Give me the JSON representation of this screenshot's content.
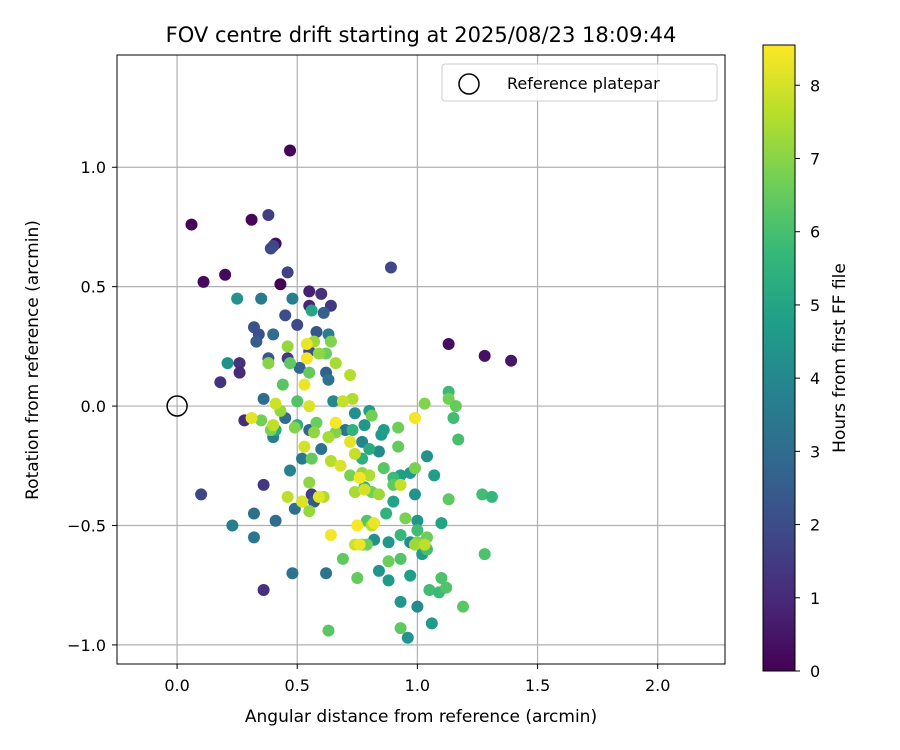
{
  "chart_data": {
    "type": "scatter",
    "title": "FOV centre drift starting at 2025/08/23 18:09:44",
    "xlabel": "Angular distance from reference (arcmin)",
    "ylabel": "Rotation from reference (arcmin)",
    "xlim": [
      -0.25,
      2.28
    ],
    "ylim": [
      -1.08,
      1.47
    ],
    "x_ticks": [
      0.0,
      0.5,
      1.0,
      1.5,
      2.0
    ],
    "x_tick_labels": [
      "0.0",
      "0.5",
      "1.0",
      "1.5",
      "2.0"
    ],
    "y_ticks": [
      -1.0,
      -0.5,
      0.0,
      0.5,
      1.0
    ],
    "y_tick_labels": [
      "−1.0",
      "−0.5",
      "0.0",
      "0.5",
      "1.0"
    ],
    "grid": true,
    "legend": {
      "placement": "top-right",
      "entries": [
        "Reference platepar"
      ]
    },
    "reference_point": {
      "label": "Reference platepar",
      "x": 0.0,
      "y": 0.0
    },
    "colorbar": {
      "label": "Hours from first FF file",
      "min": 0,
      "max": 8.55,
      "ticks": [
        0,
        1,
        2,
        3,
        4,
        5,
        6,
        7,
        8
      ],
      "tick_labels": [
        "0",
        "1",
        "2",
        "3",
        "4",
        "5",
        "6",
        "7",
        "8"
      ],
      "colormap": "viridis"
    },
    "colormap_stops": [
      "#440154",
      "#482878",
      "#3e4989",
      "#31688e",
      "#26828e",
      "#1f9e89",
      "#35b779",
      "#6ece58",
      "#b5de2b",
      "#fde725"
    ],
    "points": [
      {
        "x": 0.47,
        "y": 1.07,
        "h": 0.1
      },
      {
        "x": 0.06,
        "y": 0.76,
        "h": 0.1
      },
      {
        "x": 0.31,
        "y": 0.78,
        "h": 0.2
      },
      {
        "x": 0.41,
        "y": 0.68,
        "h": 0.3
      },
      {
        "x": 0.11,
        "y": 0.52,
        "h": 0.2
      },
      {
        "x": 0.2,
        "y": 0.55,
        "h": 0.2
      },
      {
        "x": 0.43,
        "y": 0.51,
        "h": 0.1
      },
      {
        "x": 1.13,
        "y": 0.26,
        "h": 0.3
      },
      {
        "x": 1.28,
        "y": 0.21,
        "h": 0.4
      },
      {
        "x": 1.39,
        "y": 0.19,
        "h": 0.5
      },
      {
        "x": 0.55,
        "y": 0.48,
        "h": 0.8
      },
      {
        "x": 0.6,
        "y": 0.47,
        "h": 1.2
      },
      {
        "x": 0.55,
        "y": 0.42,
        "h": 0.9
      },
      {
        "x": 0.64,
        "y": 0.42,
        "h": 1.4
      },
      {
        "x": 0.38,
        "y": 0.8,
        "h": 1.6
      },
      {
        "x": 0.4,
        "y": 0.67,
        "h": 1.8
      },
      {
        "x": 0.39,
        "y": 0.66,
        "h": 1.9
      },
      {
        "x": 0.46,
        "y": 0.56,
        "h": 1.7
      },
      {
        "x": 0.89,
        "y": 0.58,
        "h": 1.9
      },
      {
        "x": 0.18,
        "y": 0.1,
        "h": 1.3
      },
      {
        "x": 0.26,
        "y": 0.18,
        "h": 1.2
      },
      {
        "x": 0.26,
        "y": 0.14,
        "h": 1.0
      },
      {
        "x": 0.28,
        "y": -0.06,
        "h": 1.1
      },
      {
        "x": 0.1,
        "y": -0.37,
        "h": 1.8
      },
      {
        "x": 0.36,
        "y": -0.33,
        "h": 1.4
      },
      {
        "x": 0.36,
        "y": -0.77,
        "h": 1.2
      },
      {
        "x": 0.32,
        "y": 0.33,
        "h": 2.2
      },
      {
        "x": 0.34,
        "y": 0.3,
        "h": 2.1
      },
      {
        "x": 0.45,
        "y": 0.38,
        "h": 2.0
      },
      {
        "x": 0.5,
        "y": 0.34,
        "h": 1.9
      },
      {
        "x": 0.58,
        "y": 0.31,
        "h": 2.3
      },
      {
        "x": 0.61,
        "y": 0.39,
        "h": 2.6
      },
      {
        "x": 0.33,
        "y": 0.27,
        "h": 2.5
      },
      {
        "x": 0.46,
        "y": 0.2,
        "h": 1.5
      },
      {
        "x": 0.55,
        "y": 0.23,
        "h": 2.0
      },
      {
        "x": 0.38,
        "y": 0.2,
        "h": 2.4
      },
      {
        "x": 0.51,
        "y": 0.16,
        "h": 2.8
      },
      {
        "x": 0.62,
        "y": 0.14,
        "h": 2.6
      },
      {
        "x": 0.36,
        "y": 0.03,
        "h": 3.0
      },
      {
        "x": 0.45,
        "y": -0.05,
        "h": 3.0
      },
      {
        "x": 0.55,
        "y": -0.1,
        "h": 2.8
      },
      {
        "x": 0.6,
        "y": -0.18,
        "h": 3.2
      },
      {
        "x": 0.56,
        "y": -0.37,
        "h": 1.6
      },
      {
        "x": 0.57,
        "y": -0.4,
        "h": 2.4
      },
      {
        "x": 0.49,
        "y": -0.43,
        "h": 3.1
      },
      {
        "x": 0.41,
        "y": -0.48,
        "h": 3.0
      },
      {
        "x": 0.32,
        "y": -0.45,
        "h": 3.1
      },
      {
        "x": 0.48,
        "y": -0.7,
        "h": 3.2
      },
      {
        "x": 0.62,
        "y": -0.7,
        "h": 3.3
      },
      {
        "x": 0.32,
        "y": -0.55,
        "h": 3.4
      },
      {
        "x": 0.23,
        "y": -0.5,
        "h": 3.7
      },
      {
        "x": 0.35,
        "y": 0.45,
        "h": 3.5
      },
      {
        "x": 0.48,
        "y": 0.45,
        "h": 3.6
      },
      {
        "x": 0.4,
        "y": 0.3,
        "h": 3.0
      },
      {
        "x": 0.63,
        "y": 0.3,
        "h": 3.6
      },
      {
        "x": 0.63,
        "y": 0.11,
        "h": 3.2
      },
      {
        "x": 0.4,
        "y": -0.13,
        "h": 3.7
      },
      {
        "x": 0.52,
        "y": -0.22,
        "h": 3.4
      },
      {
        "x": 0.47,
        "y": -0.27,
        "h": 3.8
      },
      {
        "x": 0.7,
        "y": -0.1,
        "h": 3.3
      },
      {
        "x": 0.77,
        "y": -0.15,
        "h": 3.9
      },
      {
        "x": 0.65,
        "y": 0.02,
        "h": 4.0
      },
      {
        "x": 0.74,
        "y": -0.03,
        "h": 4.2
      },
      {
        "x": 0.78,
        "y": -0.08,
        "h": 4.5
      },
      {
        "x": 0.85,
        "y": -0.12,
        "h": 4.6
      },
      {
        "x": 0.84,
        "y": -0.19,
        "h": 4.1
      },
      {
        "x": 0.86,
        "y": -0.1,
        "h": 4.8
      },
      {
        "x": 0.8,
        "y": -0.02,
        "h": 4.7
      },
      {
        "x": 0.93,
        "y": -0.29,
        "h": 4.8
      },
      {
        "x": 0.97,
        "y": -0.28,
        "h": 4.6
      },
      {
        "x": 0.99,
        "y": -0.37,
        "h": 4.4
      },
      {
        "x": 0.9,
        "y": -0.4,
        "h": 4.9
      },
      {
        "x": 1.0,
        "y": -0.48,
        "h": 4.5
      },
      {
        "x": 1.04,
        "y": -0.21,
        "h": 4.3
      },
      {
        "x": 1.07,
        "y": -0.29,
        "h": 4.7
      },
      {
        "x": 0.88,
        "y": -0.57,
        "h": 4.5
      },
      {
        "x": 0.82,
        "y": -0.56,
        "h": 4.3
      },
      {
        "x": 0.84,
        "y": -0.69,
        "h": 4.4
      },
      {
        "x": 0.88,
        "y": -0.73,
        "h": 4.6
      },
      {
        "x": 0.93,
        "y": -0.82,
        "h": 4.5
      },
      {
        "x": 0.97,
        "y": -0.57,
        "h": 4.2
      },
      {
        "x": 0.97,
        "y": -0.71,
        "h": 4.8
      },
      {
        "x": 1.02,
        "y": -0.62,
        "h": 4.7
      },
      {
        "x": 1.0,
        "y": -0.84,
        "h": 4.1
      },
      {
        "x": 0.96,
        "y": -0.97,
        "h": 4.4
      },
      {
        "x": 1.06,
        "y": -0.91,
        "h": 4.6
      },
      {
        "x": 1.1,
        "y": -0.49,
        "h": 4.9
      },
      {
        "x": 0.25,
        "y": 0.45,
        "h": 4.4
      },
      {
        "x": 0.21,
        "y": 0.18,
        "h": 4.3
      },
      {
        "x": 0.56,
        "y": 0.4,
        "h": 5.0
      },
      {
        "x": 0.41,
        "y": -0.1,
        "h": 5.2
      },
      {
        "x": 0.5,
        "y": -0.08,
        "h": 5.3
      },
      {
        "x": 0.73,
        "y": -0.1,
        "h": 5.5
      },
      {
        "x": 0.8,
        "y": -0.18,
        "h": 5.2
      },
      {
        "x": 0.77,
        "y": -0.22,
        "h": 5.4
      },
      {
        "x": 0.78,
        "y": -0.34,
        "h": 5.6
      },
      {
        "x": 0.9,
        "y": -0.3,
        "h": 5.8
      },
      {
        "x": 0.87,
        "y": -0.45,
        "h": 5.5
      },
      {
        "x": 0.93,
        "y": -0.54,
        "h": 5.7
      },
      {
        "x": 1.0,
        "y": -0.52,
        "h": 5.9
      },
      {
        "x": 1.02,
        "y": -0.58,
        "h": 5.6
      },
      {
        "x": 1.04,
        "y": -0.6,
        "h": 6.0
      },
      {
        "x": 1.05,
        "y": -0.77,
        "h": 5.9
      },
      {
        "x": 1.09,
        "y": -0.78,
        "h": 5.8
      },
      {
        "x": 1.12,
        "y": -0.76,
        "h": 6.2
      },
      {
        "x": 1.1,
        "y": -0.72,
        "h": 6.1
      },
      {
        "x": 1.19,
        "y": -0.84,
        "h": 6.3
      },
      {
        "x": 1.13,
        "y": 0.06,
        "h": 5.8
      },
      {
        "x": 1.15,
        "y": -0.05,
        "h": 5.9
      },
      {
        "x": 1.17,
        "y": -0.14,
        "h": 6.0
      },
      {
        "x": 1.27,
        "y": -0.37,
        "h": 5.9
      },
      {
        "x": 1.31,
        "y": -0.38,
        "h": 5.7
      },
      {
        "x": 1.28,
        "y": -0.62,
        "h": 6.1
      },
      {
        "x": 1.13,
        "y": -0.39,
        "h": 6.4
      },
      {
        "x": 0.63,
        "y": -0.94,
        "h": 6.3
      },
      {
        "x": 0.69,
        "y": -0.64,
        "h": 6.4
      },
      {
        "x": 0.75,
        "y": -0.72,
        "h": 6.5
      },
      {
        "x": 0.88,
        "y": -0.65,
        "h": 6.6
      },
      {
        "x": 0.93,
        "y": -0.64,
        "h": 6.2
      },
      {
        "x": 0.93,
        "y": -0.93,
        "h": 6.4
      },
      {
        "x": 1.04,
        "y": -0.55,
        "h": 6.6
      },
      {
        "x": 0.79,
        "y": -0.58,
        "h": 6.7
      },
      {
        "x": 0.77,
        "y": -0.58,
        "h": 6.6
      },
      {
        "x": 0.9,
        "y": -0.33,
        "h": 6.4
      },
      {
        "x": 0.95,
        "y": -0.47,
        "h": 6.8
      },
      {
        "x": 1.0,
        "y": -0.57,
        "h": 6.9
      },
      {
        "x": 0.92,
        "y": -0.17,
        "h": 6.5
      },
      {
        "x": 0.86,
        "y": -0.26,
        "h": 6.3
      },
      {
        "x": 0.81,
        "y": -0.36,
        "h": 6.7
      },
      {
        "x": 0.79,
        "y": -0.48,
        "h": 6.2
      },
      {
        "x": 0.72,
        "y": -0.29,
        "h": 6.8
      },
      {
        "x": 0.66,
        "y": -0.11,
        "h": 6.9
      },
      {
        "x": 0.58,
        "y": -0.07,
        "h": 6.6
      },
      {
        "x": 0.47,
        "y": 0.18,
        "h": 6.4
      },
      {
        "x": 0.55,
        "y": 0.14,
        "h": 6.5
      },
      {
        "x": 0.64,
        "y": 0.27,
        "h": 6.9
      },
      {
        "x": 0.62,
        "y": 0.22,
        "h": 6.6
      },
      {
        "x": 0.44,
        "y": 0.09,
        "h": 6.3
      },
      {
        "x": 0.5,
        "y": 0.02,
        "h": 6.2
      },
      {
        "x": 0.35,
        "y": -0.06,
        "h": 6.7
      },
      {
        "x": 0.39,
        "y": -0.1,
        "h": 6.8
      },
      {
        "x": 0.49,
        "y": -0.09,
        "h": 6.9
      },
      {
        "x": 0.56,
        "y": -0.22,
        "h": 6.5
      },
      {
        "x": 0.52,
        "y": -0.4,
        "h": 6.4
      },
      {
        "x": 0.81,
        "y": -0.04,
        "h": 6.7
      },
      {
        "x": 0.92,
        "y": -0.09,
        "h": 6.6
      },
      {
        "x": 0.99,
        "y": -0.26,
        "h": 6.8
      },
      {
        "x": 1.03,
        "y": 0.01,
        "h": 6.9
      },
      {
        "x": 1.13,
        "y": 0.03,
        "h": 6.7
      },
      {
        "x": 1.16,
        "y": 0.0,
        "h": 6.5
      },
      {
        "x": 0.38,
        "y": 0.18,
        "h": 7.0
      },
      {
        "x": 0.46,
        "y": 0.25,
        "h": 7.2
      },
      {
        "x": 0.57,
        "y": 0.27,
        "h": 7.3
      },
      {
        "x": 0.59,
        "y": 0.22,
        "h": 7.1
      },
      {
        "x": 0.66,
        "y": 0.18,
        "h": 7.4
      },
      {
        "x": 0.72,
        "y": 0.13,
        "h": 7.6
      },
      {
        "x": 0.73,
        "y": 0.03,
        "h": 7.5
      },
      {
        "x": 0.69,
        "y": 0.02,
        "h": 7.8
      },
      {
        "x": 0.43,
        "y": -0.02,
        "h": 7.2
      },
      {
        "x": 0.4,
        "y": -0.08,
        "h": 7.7
      },
      {
        "x": 0.57,
        "y": -0.11,
        "h": 7.1
      },
      {
        "x": 0.63,
        "y": -0.13,
        "h": 7.4
      },
      {
        "x": 0.64,
        "y": -0.23,
        "h": 7.6
      },
      {
        "x": 0.74,
        "y": -0.2,
        "h": 7.8
      },
      {
        "x": 0.77,
        "y": -0.28,
        "h": 7.2
      },
      {
        "x": 0.8,
        "y": -0.29,
        "h": 7.5
      },
      {
        "x": 0.84,
        "y": -0.37,
        "h": 7.3
      },
      {
        "x": 0.74,
        "y": -0.36,
        "h": 7.4
      },
      {
        "x": 0.61,
        "y": -0.38,
        "h": 7.5
      },
      {
        "x": 0.55,
        "y": -0.32,
        "h": 7.1
      },
      {
        "x": 0.46,
        "y": -0.38,
        "h": 7.7
      },
      {
        "x": 0.55,
        "y": -0.44,
        "h": 7.2
      },
      {
        "x": 0.74,
        "y": -0.58,
        "h": 7.9
      },
      {
        "x": 0.81,
        "y": -0.5,
        "h": 7.6
      },
      {
        "x": 0.99,
        "y": -0.58,
        "h": 7.3
      },
      {
        "x": 1.03,
        "y": -0.58,
        "h": 7.7
      },
      {
        "x": 0.93,
        "y": -0.33,
        "h": 7.8
      },
      {
        "x": 0.41,
        "y": 0.01,
        "h": 7.9
      },
      {
        "x": 0.53,
        "y": -0.17,
        "h": 8.0
      },
      {
        "x": 0.31,
        "y": -0.05,
        "h": 8.2
      },
      {
        "x": 0.55,
        "y": 0.0,
        "h": 8.1
      },
      {
        "x": 0.53,
        "y": 0.09,
        "h": 8.3
      },
      {
        "x": 0.54,
        "y": 0.2,
        "h": 8.4
      },
      {
        "x": 0.54,
        "y": 0.26,
        "h": 8.3
      },
      {
        "x": 0.66,
        "y": -0.07,
        "h": 8.5
      },
      {
        "x": 0.68,
        "y": -0.25,
        "h": 8.1
      },
      {
        "x": 0.72,
        "y": -0.15,
        "h": 8.2
      },
      {
        "x": 0.76,
        "y": -0.3,
        "h": 8.4
      },
      {
        "x": 0.78,
        "y": -0.35,
        "h": 8.0
      },
      {
        "x": 0.82,
        "y": -0.49,
        "h": 8.3
      },
      {
        "x": 0.75,
        "y": -0.5,
        "h": 8.5
      },
      {
        "x": 0.64,
        "y": -0.54,
        "h": 8.4
      },
      {
        "x": 0.59,
        "y": -0.38,
        "h": 8.2
      },
      {
        "x": 0.52,
        "y": -0.4,
        "h": 8.1
      },
      {
        "x": 0.76,
        "y": -0.58,
        "h": 8.3
      },
      {
        "x": 0.99,
        "y": -0.05,
        "h": 8.4
      }
    ]
  }
}
